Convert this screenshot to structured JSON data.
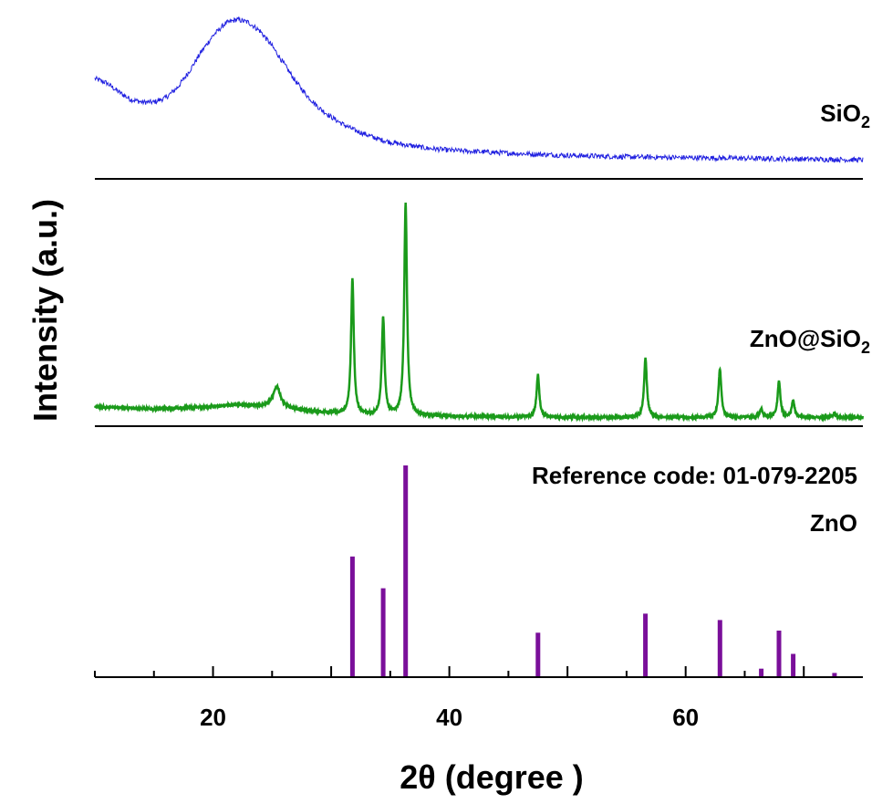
{
  "chart_data": {
    "type": "line",
    "xlabel": "2θ (degree )",
    "ylabel": "Intensity (a.u.)",
    "xlim": [
      10,
      75
    ],
    "x_ticks": [
      "20",
      "40",
      "60"
    ],
    "x_tick_values": [
      20,
      40,
      60
    ],
    "grid": false,
    "legend": "none",
    "series": [
      {
        "name": "SiO2",
        "label_main": "SiO",
        "label_sub": "2",
        "color": "#1f1fe0",
        "points": [
          [
            10,
            0.58
          ],
          [
            11,
            0.55
          ],
          [
            12,
            0.49
          ],
          [
            13,
            0.44
          ],
          [
            14,
            0.42
          ],
          [
            15,
            0.42
          ],
          [
            16,
            0.45
          ],
          [
            17,
            0.52
          ],
          [
            18,
            0.63
          ],
          [
            19,
            0.76
          ],
          [
            20,
            0.87
          ],
          [
            21,
            0.95
          ],
          [
            22,
            0.98
          ],
          [
            23,
            0.96
          ],
          [
            24,
            0.9
          ],
          [
            25,
            0.8
          ],
          [
            26,
            0.68
          ],
          [
            27,
            0.56
          ],
          [
            28,
            0.46
          ],
          [
            29,
            0.38
          ],
          [
            30,
            0.32
          ],
          [
            31,
            0.27
          ],
          [
            32,
            0.23
          ],
          [
            33,
            0.2
          ],
          [
            34,
            0.17
          ],
          [
            35,
            0.15
          ],
          [
            36,
            0.135
          ],
          [
            38,
            0.11
          ],
          [
            40,
            0.095
          ],
          [
            45,
            0.075
          ],
          [
            50,
            0.06
          ],
          [
            55,
            0.05
          ],
          [
            60,
            0.045
          ],
          [
            65,
            0.04
          ],
          [
            70,
            0.035
          ],
          [
            75,
            0.03
          ]
        ]
      },
      {
        "name": "ZnO@SiO2",
        "label_main": "ZnO@SiO",
        "label_sub": "2",
        "color": "#1a9a1a",
        "baseline": [
          [
            10,
            0.07
          ],
          [
            15,
            0.06
          ],
          [
            20,
            0.07
          ],
          [
            22,
            0.08
          ],
          [
            25,
            0.07
          ],
          [
            28,
            0.05
          ],
          [
            32,
            0.03
          ],
          [
            40,
            0.025
          ],
          [
            50,
            0.02
          ],
          [
            60,
            0.02
          ],
          [
            75,
            0.02
          ]
        ],
        "peaks": [
          {
            "x": 25.4,
            "y": 0.1
          },
          {
            "x": 31.8,
            "y": 0.64
          },
          {
            "x": 34.4,
            "y": 0.46
          },
          {
            "x": 36.3,
            "y": 1.0
          },
          {
            "x": 47.5,
            "y": 0.2
          },
          {
            "x": 56.6,
            "y": 0.28
          },
          {
            "x": 62.9,
            "y": 0.23
          },
          {
            "x": 66.4,
            "y": 0.04
          },
          {
            "x": 67.9,
            "y": 0.17
          },
          {
            "x": 69.1,
            "y": 0.08
          },
          {
            "x": 72.6,
            "y": 0.02
          }
        ]
      },
      {
        "name": "ZnO",
        "label_main": "ZnO",
        "label_sub": "",
        "reference": "Reference code: 01-079-2205",
        "color": "#7a0f9a",
        "type": "stick",
        "sticks": [
          {
            "x": 31.8,
            "y": 0.57
          },
          {
            "x": 34.4,
            "y": 0.42
          },
          {
            "x": 36.3,
            "y": 1.0
          },
          {
            "x": 47.5,
            "y": 0.21
          },
          {
            "x": 56.6,
            "y": 0.3
          },
          {
            "x": 62.9,
            "y": 0.27
          },
          {
            "x": 66.4,
            "y": 0.04
          },
          {
            "x": 67.9,
            "y": 0.22
          },
          {
            "x": 69.1,
            "y": 0.11
          },
          {
            "x": 72.6,
            "y": 0.02
          }
        ]
      }
    ]
  }
}
